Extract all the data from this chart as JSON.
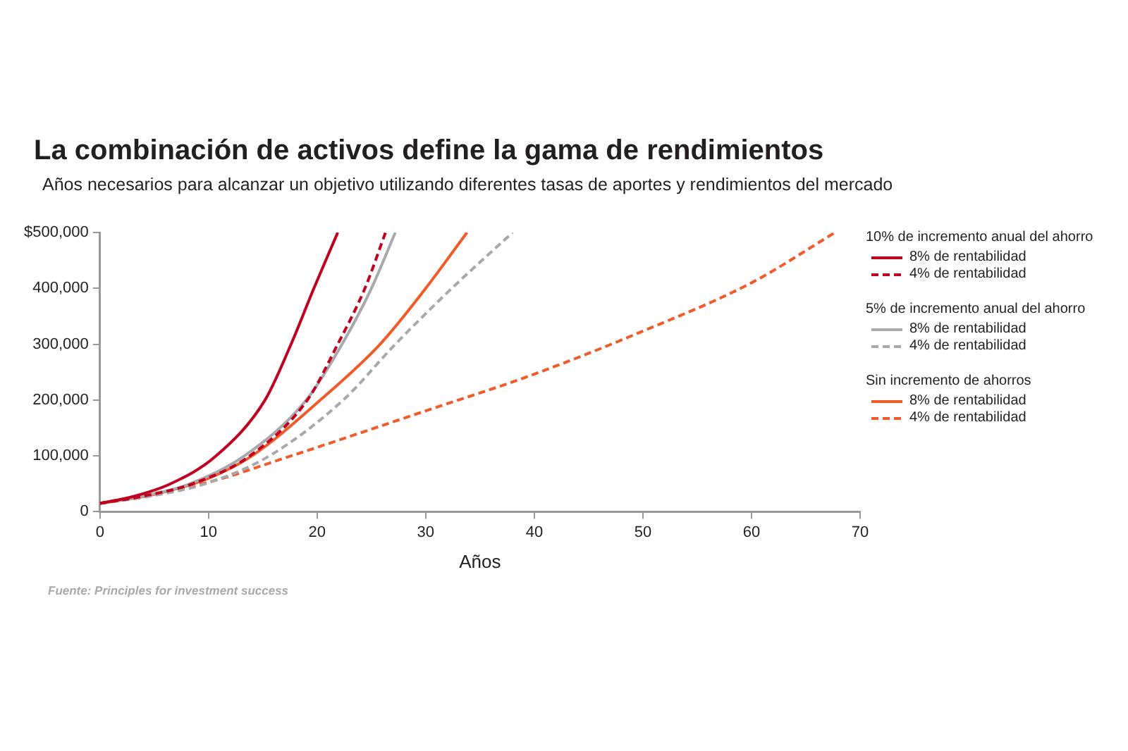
{
  "chart_data": {
    "type": "line",
    "title": "La combinación de activos define la gama de rendimientos",
    "subtitle": "Años necesarios para alcanzar un objetivo utilizando diferentes tasas de aportes y rendimientos del mercado",
    "xlabel": "Años",
    "annotations": [
      "10% de incremento anual del ahorro",
      "5% de incremento anual del ahorro",
      "Sin incremento de ahorros",
      "Fuente: Principles for investment success"
    ],
    "xlim": [
      0,
      70
    ],
    "xticks": [
      0,
      10,
      20,
      30,
      40,
      50,
      60,
      70
    ],
    "ylim": [
      0,
      500000
    ],
    "yticks": [
      {
        "value": 0,
        "label": "0"
      },
      {
        "value": 100000,
        "label": "100,000"
      },
      {
        "value": 200000,
        "label": "200,000"
      },
      {
        "value": 300000,
        "label": "300,000"
      },
      {
        "value": 400000,
        "label": "400,000"
      },
      {
        "value": 500000,
        "label": "$500,000"
      }
    ],
    "grid": false,
    "legend": "right",
    "marker": "none",
    "series": [
      {
        "name": "8% de rentabilidad",
        "color": "#c00020",
        "line_style": "solid",
        "x": [
          0,
          3,
          6.5,
          10.7,
          15.2,
          17.6,
          19.7,
          21.9
        ],
        "values": [
          15000,
          27000,
          50000,
          100000,
          200000,
          300000,
          400000,
          500000
        ]
      },
      {
        "name": "4% de rentabilidad",
        "color": "#c00020",
        "line_style": "dashed",
        "x": [
          0,
          4,
          8.5,
          13.8,
          19.1,
          21.9,
          24.4,
          26.3
        ],
        "values": [
          15000,
          28000,
          50000,
          100000,
          200000,
          300000,
          400000,
          500000
        ]
      },
      {
        "name": "8% de rentabilidad",
        "color": "#a7a9ac",
        "line_style": "solid",
        "x": [
          0,
          4,
          8,
          13.3,
          19,
          22.3,
          25,
          27.2
        ],
        "values": [
          15000,
          28000,
          48000,
          100000,
          200000,
          300000,
          400000,
          500000
        ]
      },
      {
        "name": "4% de rentabilidad",
        "color": "#a7a9ac",
        "line_style": "dashed",
        "x": [
          0,
          5,
          10,
          15.6,
          22.4,
          27.2,
          32.4,
          38
        ],
        "values": [
          15000,
          29000,
          52000,
          100000,
          200000,
          300000,
          400000,
          500000
        ]
      },
      {
        "name": "8% de rentabilidad",
        "color": "#f15a29",
        "line_style": "solid",
        "x": [
          0,
          5,
          10,
          14,
          20.3,
          25.8,
          30,
          33.8
        ],
        "values": [
          15000,
          31000,
          60000,
          100000,
          200000,
          300000,
          400000,
          500000
        ]
      },
      {
        "name": "4% de rentabilidad",
        "color": "#f15a29",
        "line_style": "dashed",
        "x": [
          0,
          10,
          17.6,
          23.8,
          29.9,
          39.8,
          49.7,
          60,
          67.7
        ],
        "values": [
          15000,
          53000,
          100000,
          140000,
          180000,
          245000,
          321000,
          410000,
          500000
        ]
      }
    ]
  }
}
